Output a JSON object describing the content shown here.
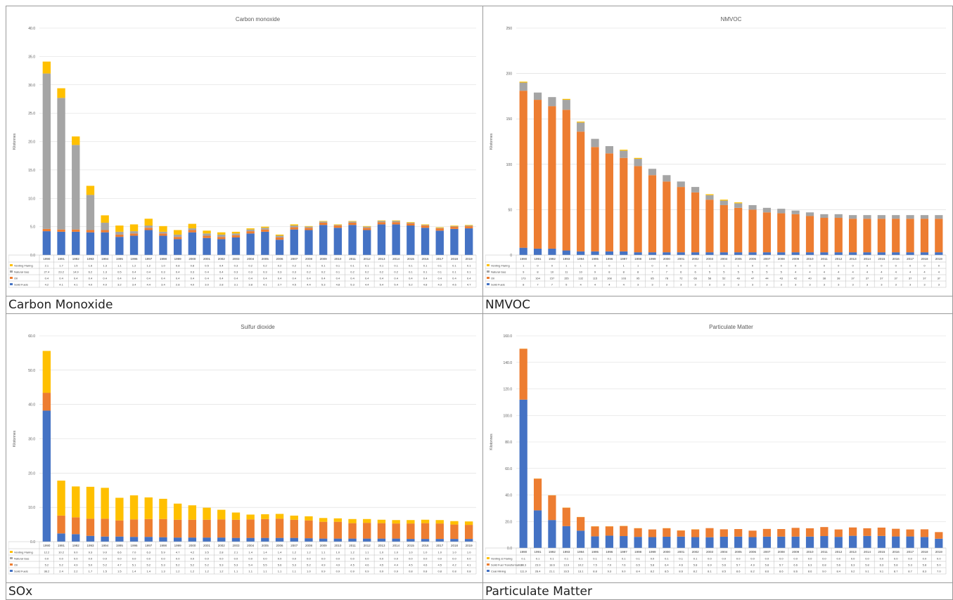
{
  "captions": [
    "Carbon Monoxide",
    "NMVOC",
    "SOx",
    "Particulate Matter"
  ],
  "colors": {
    "blue": "#4472c4",
    "orange": "#ed7d31",
    "gray": "#a5a5a5",
    "yellow": "#ffc000",
    "grid": "#d9d9d9",
    "axis": "#bfbfbf"
  },
  "chart_data": [
    {
      "type": "bar",
      "stacked": true,
      "title": "Carbon monoxide",
      "ylabel": "Kilotonnes",
      "ylim": [
        0,
        40
      ],
      "yticks": [
        "0.0",
        "5.0",
        "10.0",
        "15.0",
        "20.0",
        "25.0",
        "30.0",
        "35.0",
        "40.0"
      ],
      "categories": [
        "1990",
        "1991",
        "1992",
        "1993",
        "1994",
        "1995",
        "1996",
        "1997",
        "1998",
        "1999",
        "2000",
        "2001",
        "2002",
        "2003",
        "2004",
        "2005",
        "2006",
        "2007",
        "2008",
        "2009",
        "2010",
        "2011",
        "2012",
        "2013",
        "2014",
        "2015",
        "2016",
        "2017",
        "2018",
        "2019"
      ],
      "series": [
        {
          "name": "Solid Fuels",
          "color": "blue",
          "values": [
            4.2,
            4.1,
            4.1,
            4.0,
            4.0,
            3.2,
            3.4,
            4.4,
            3.4,
            2.8,
            4.0,
            3.0,
            2.8,
            3.1,
            3.8,
            4.1,
            2.7,
            4.5,
            4.4,
            5.3,
            4.8,
            5.3,
            4.4,
            5.4,
            5.4,
            5.2,
            4.8,
            4.3,
            4.6,
            4.7
          ]
        },
        {
          "name": "Oil",
          "color": "orange",
          "values": [
            0.4,
            0.4,
            0.4,
            0.4,
            0.4,
            0.4,
            0.4,
            0.4,
            0.4,
            0.4,
            0.4,
            0.4,
            0.4,
            0.4,
            0.4,
            0.4,
            0.4,
            0.4,
            0.4,
            0.4,
            0.4,
            0.4,
            0.4,
            0.4,
            0.4,
            0.4,
            0.4,
            0.4,
            0.4,
            0.4
          ]
        },
        {
          "name": "Natural Gas",
          "color": "gray",
          "values": [
            27.4,
            23.2,
            14.9,
            6.2,
            1.3,
            0.5,
            0.4,
            0.4,
            0.3,
            0.4,
            0.3,
            0.4,
            0.4,
            0.3,
            0.3,
            0.3,
            0.3,
            0.3,
            0.2,
            0.2,
            0.1,
            0.2,
            0.2,
            0.2,
            0.2,
            0.1,
            0.1,
            0.1,
            0.1,
            0.1
          ]
        },
        {
          "name": "Venting Flaring",
          "color": "yellow",
          "values": [
            2.1,
            1.7,
            1.5,
            1.6,
            1.3,
            1.1,
            1.2,
            1.2,
            1.0,
            0.8,
            0.8,
            0.5,
            0.4,
            0.3,
            0.2,
            0.2,
            0.2,
            0.2,
            0.1,
            0.1,
            0.1,
            0.1,
            0.1,
            0.1,
            0.1,
            0.1,
            0.1,
            0.1,
            0.1,
            0.1
          ]
        }
      ]
    },
    {
      "type": "bar",
      "stacked": true,
      "title": "NMVOC",
      "ylabel": "Kilotonnes",
      "ylim": [
        0,
        250
      ],
      "yticks": [
        "0",
        "50",
        "100",
        "150",
        "200",
        "250"
      ],
      "categories": [
        "1990",
        "1991",
        "1992",
        "1993",
        "1994",
        "1995",
        "1996",
        "1997",
        "1998",
        "1999",
        "2000",
        "2001",
        "2002",
        "2003",
        "2004",
        "2005",
        "2006",
        "2007",
        "2008",
        "2009",
        "2010",
        "2011",
        "2012",
        "2013",
        "2014",
        "2015",
        "2016",
        "2017",
        "2018",
        "2019"
      ],
      "series": [
        {
          "name": "Solid Fuels",
          "color": "blue",
          "values": [
            8,
            7,
            7,
            5,
            4,
            4,
            4,
            4,
            3,
            3,
            3,
            3,
            3,
            3,
            3,
            3,
            3,
            3,
            3,
            3,
            3,
            3,
            3,
            3,
            3,
            3,
            3,
            3,
            3,
            3
          ]
        },
        {
          "name": "Oil",
          "color": "orange",
          "values": [
            173,
            164,
            157,
            155,
            132,
            115,
            108,
            103,
            95,
            85,
            78,
            72,
            66,
            58,
            52,
            49,
            47,
            44,
            43,
            42,
            40,
            38,
            38,
            37,
            37,
            37,
            37,
            37,
            37,
            37
          ]
        },
        {
          "name": "Natural Gas",
          "color": "gray",
          "values": [
            9,
            8,
            10,
            11,
            10,
            9,
            8,
            8,
            8,
            7,
            7,
            6,
            6,
            5,
            5,
            5,
            5,
            5,
            5,
            4,
            4,
            4,
            4,
            4,
            4,
            4,
            4,
            4,
            4,
            4
          ]
        },
        {
          "name": "Venting Flaring",
          "color": "yellow",
          "values": [
            1,
            0,
            0,
            1,
            1,
            0,
            0,
            1,
            1,
            0,
            0,
            0,
            0,
            1,
            1,
            1,
            0,
            0,
            0,
            0,
            0,
            0,
            0,
            0,
            0,
            0,
            0,
            0,
            0,
            0
          ]
        }
      ]
    },
    {
      "type": "bar",
      "stacked": true,
      "title": "Sulfur dioxide",
      "ylabel": "Kilotonnes",
      "ylim": [
        0,
        60
      ],
      "yticks": [
        "0.0",
        "10.0",
        "20.0",
        "30.0",
        "40.0",
        "50.0",
        "60.0"
      ],
      "categories": [
        "1990",
        "1991",
        "1992",
        "1993",
        "1994",
        "1995",
        "1996",
        "1997",
        "1998",
        "1999",
        "2000",
        "2001",
        "2002",
        "2003",
        "2004",
        "2005",
        "2006",
        "2007",
        "2008",
        "2009",
        "2010",
        "2011",
        "2012",
        "2013",
        "2014",
        "2015",
        "2016",
        "2017",
        "2018",
        "2019"
      ],
      "series": [
        {
          "name": "Solid Fuels",
          "color": "blue",
          "values": [
            38.2,
            2.4,
            2.2,
            1.7,
            1.5,
            1.5,
            1.4,
            1.4,
            1.3,
            1.2,
            1.2,
            1.2,
            1.2,
            1.1,
            1.1,
            1.1,
            1.1,
            1.1,
            1.0,
            0.9,
            0.9,
            0.9,
            0.9,
            0.9,
            0.9,
            0.8,
            0.8,
            0.8,
            0.8,
            0.8
          ]
        },
        {
          "name": "Oil",
          "color": "orange",
          "values": [
            5.2,
            5.2,
            4.9,
            5.0,
            5.2,
            4.7,
            5.1,
            5.2,
            5.3,
            5.2,
            5.2,
            5.2,
            5.3,
            5.3,
            5.4,
            5.5,
            5.6,
            5.3,
            5.2,
            4.9,
            4.9,
            4.5,
            4.6,
            4.5,
            4.4,
            4.5,
            4.6,
            4.5,
            4.2,
            4.1
          ]
        },
        {
          "name": "Natural Gas",
          "color": "gray",
          "values": [
            0,
            0,
            0,
            0,
            0,
            0,
            0,
            0,
            0,
            0,
            0,
            0,
            0,
            0,
            0,
            0,
            0,
            0,
            0,
            0,
            0,
            0,
            0,
            0,
            0,
            0,
            0,
            0,
            0,
            0
          ]
        },
        {
          "name": "Venting Flaring",
          "color": "yellow",
          "values": [
            12.2,
            10.2,
            9.0,
            9.3,
            9.0,
            6.6,
            7.0,
            6.3,
            5.9,
            4.7,
            4.2,
            3.5,
            2.8,
            2.1,
            1.4,
            1.4,
            1.4,
            1.2,
            1.2,
            1.1,
            1.0,
            1.2,
            1.1,
            1.0,
            1.0,
            1.0,
            1.0,
            1.0,
            1.0,
            1.0
          ]
        }
      ]
    },
    {
      "type": "bar",
      "stacked": true,
      "title": "Particulate Matter",
      "ylabel": "Kilotonnes",
      "ylim": [
        0,
        160
      ],
      "yticks": [
        "0.0",
        "20.0",
        "40.0",
        "60.0",
        "80.0",
        "100.0",
        "120.0",
        "140.0",
        "160.0"
      ],
      "categories": [
        "1990",
        "1991",
        "1992",
        "1993",
        "1994",
        "1995",
        "1996",
        "1997",
        "1998",
        "1999",
        "2000",
        "2001",
        "2002",
        "2003",
        "2004",
        "2005",
        "2006",
        "2007",
        "2008",
        "2009",
        "2010",
        "2011",
        "2012",
        "2013",
        "2014",
        "2015",
        "2016",
        "2017",
        "2018",
        "2019"
      ],
      "series": [
        {
          "name": "Coal Mining",
          "color": "blue",
          "values": [
            111.9,
            28.4,
            21.1,
            16.5,
            13.1,
            8.8,
            9.3,
            9.0,
            8.4,
            8.2,
            8.5,
            8.6,
            8.2,
            8.1,
            8.5,
            8.6,
            8.2,
            8.6,
            8.6,
            8.6,
            8.6,
            9.0,
            8.4,
            9.2,
            9.1,
            9.1,
            8.7,
            8.7,
            8.3,
            7.0
          ]
        },
        {
          "name": "Solid Fuel Transformation",
          "color": "orange",
          "values": [
            38.3,
            23.9,
            18.6,
            13.9,
            10.2,
            7.5,
            7.0,
            7.6,
            6.5,
            5.8,
            6.4,
            4.6,
            5.8,
            6.9,
            5.6,
            5.7,
            4.9,
            5.8,
            5.7,
            6.6,
            6.3,
            6.8,
            5.6,
            6.3,
            5.8,
            6.3,
            5.8,
            5.3,
            5.8,
            5.0
          ]
        },
        {
          "name": "Venting & Flaring",
          "color": "yellow",
          "values": [
            0.1,
            0.1,
            0.1,
            0.1,
            0.1,
            0.1,
            0.1,
            0.1,
            0.1,
            0.0,
            0.1,
            0.1,
            0.1,
            0.0,
            0.0,
            0.0,
            0.0,
            0.0,
            0.0,
            0.0,
            0.0,
            0.0,
            0.0,
            0.0,
            0.0,
            0.0,
            0.0,
            0.0,
            0.0,
            0.0
          ]
        }
      ]
    }
  ]
}
